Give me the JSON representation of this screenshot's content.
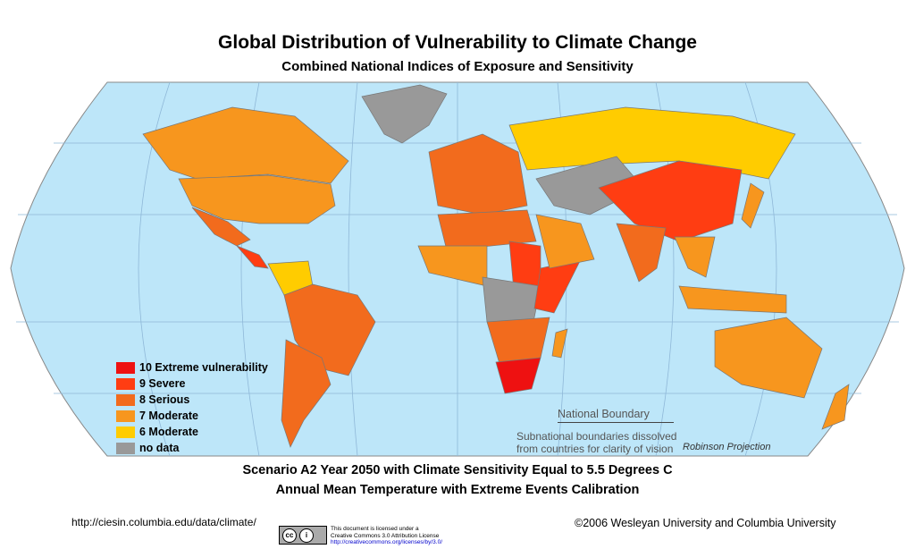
{
  "title": "Global Distribution of Vulnerability to Climate Change",
  "subtitle": "Combined National Indices of Exposure and Sensitivity",
  "colors": {
    "ocean": "#bde6f9",
    "border": "#7a7a7a",
    "graticule": "#8fb8d8"
  },
  "legend": [
    {
      "label": "10 Extreme vulnerability",
      "color": "#ee1111",
      "level": 10
    },
    {
      "label": "9  Severe",
      "color": "#ff3d12",
      "level": 9
    },
    {
      "label": "8  Serious",
      "color": "#f26b1d",
      "level": 8
    },
    {
      "label": "7  Moderate",
      "color": "#f7961e",
      "level": 7
    },
    {
      "label": "6  Moderate",
      "color": "#ffcc00",
      "level": 6
    },
    {
      "label": "no data",
      "color": "#999999",
      "level": null
    }
  ],
  "regions": [
    {
      "name": "Canada",
      "level": 7
    },
    {
      "name": "United States",
      "level": 7
    },
    {
      "name": "Greenland",
      "level": null
    },
    {
      "name": "Mexico",
      "level": 8
    },
    {
      "name": "Central America",
      "level": 9
    },
    {
      "name": "Venezuela/Colombia",
      "level": 6
    },
    {
      "name": "Brazil",
      "level": 8
    },
    {
      "name": "Southern South America",
      "level": 8
    },
    {
      "name": "Europe",
      "level": 8
    },
    {
      "name": "Russia",
      "level": 6
    },
    {
      "name": "Central Asia",
      "level": null
    },
    {
      "name": "China",
      "level": 9
    },
    {
      "name": "India",
      "level": 8
    },
    {
      "name": "Southeast Asia",
      "level": 7
    },
    {
      "name": "Japan",
      "level": 7
    },
    {
      "name": "North Africa",
      "level": 8
    },
    {
      "name": "West Africa",
      "level": 7
    },
    {
      "name": "Sudan",
      "level": 9
    },
    {
      "name": "Central Africa",
      "level": null
    },
    {
      "name": "East Africa",
      "level": 9
    },
    {
      "name": "Southern Africa",
      "level": 8
    },
    {
      "name": "South Africa",
      "level": 10
    },
    {
      "name": "Madagascar",
      "level": 7
    },
    {
      "name": "Arabia",
      "level": 7
    },
    {
      "name": "Indonesia",
      "level": 7
    },
    {
      "name": "Australia",
      "level": 7
    },
    {
      "name": "New Zealand",
      "level": 7
    }
  ],
  "boundary_note": {
    "title": "National Boundary",
    "text1": "Subnational boundaries dissolved",
    "text2": "from countries for clarity of vision"
  },
  "projection": "Robinson Projection",
  "scenario1": "Scenario A2 Year 2050 with Climate Sensitivity Equal to 5.5 Degrees C",
  "scenario2": "Annual Mean Temperature with Extreme Events Calibration",
  "url": "http://ciesin.columbia.edu/data/climate/",
  "copyright": "©2006 Wesleyan University and Columbia University",
  "license": {
    "badge": "BY",
    "line1": "This document is licensed under a",
    "line2": "Creative Commons 3.0 Attribution License",
    "link": "http://creativecommons.org/licenses/by/3.0/"
  }
}
